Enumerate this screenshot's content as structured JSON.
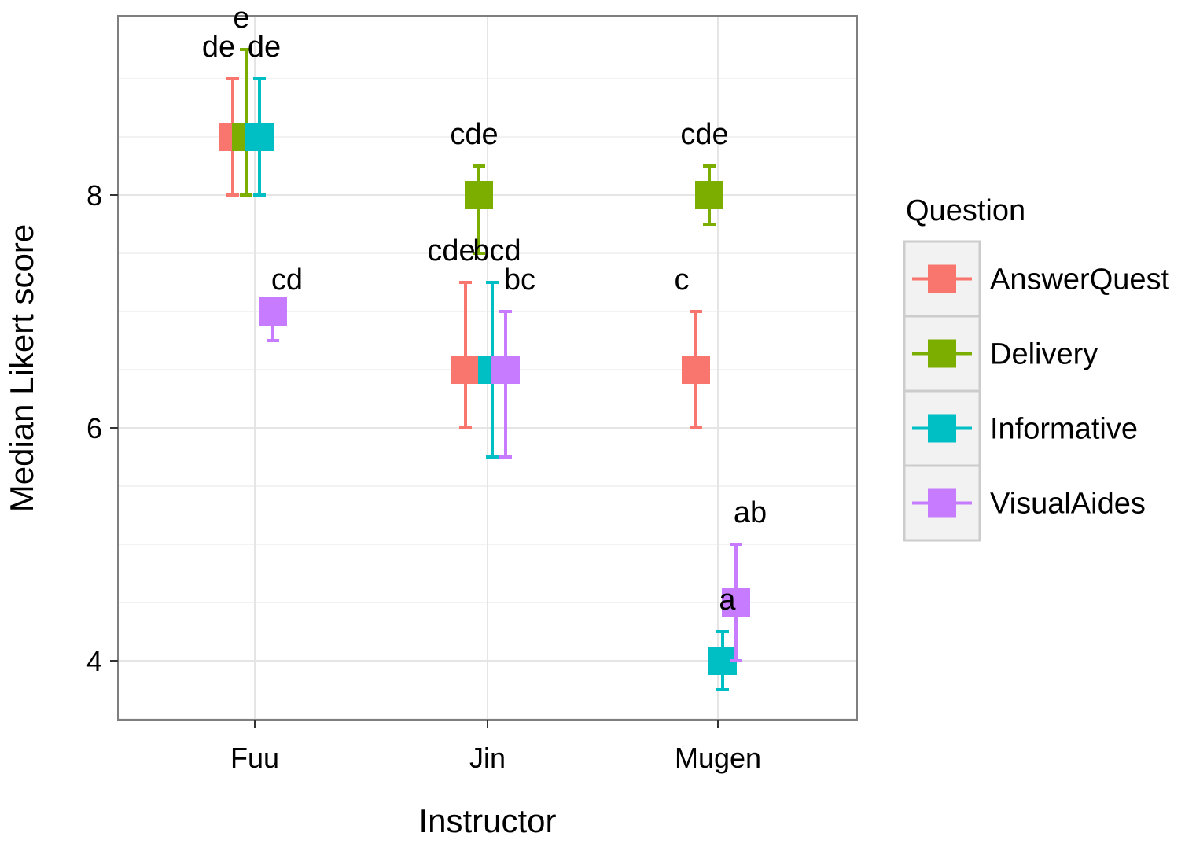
{
  "chart_data": {
    "type": "errorbar",
    "title": "",
    "xlabel": "Instructor",
    "ylabel": "Median Likert score",
    "categories": [
      "Fuu",
      "Jin",
      "Mugen"
    ],
    "yticks": [
      4,
      6,
      8
    ],
    "ylim": [
      3.5,
      9.5
    ],
    "grid": true,
    "legend": {
      "title": "Question",
      "position": "right"
    },
    "series": [
      {
        "name": "AnswerQuest",
        "color": "#F8766D",
        "points": [
          {
            "x": "Fuu",
            "median": 8.5,
            "lower": 8.0,
            "upper": 9.0,
            "label": "de"
          },
          {
            "x": "Jin",
            "median": 6.5,
            "lower": 6.0,
            "upper": 7.25,
            "label": "cde"
          },
          {
            "x": "Mugen",
            "median": 6.5,
            "lower": 6.0,
            "upper": 7.0,
            "label": "c"
          }
        ]
      },
      {
        "name": "Delivery",
        "color": "#7CAE00",
        "points": [
          {
            "x": "Fuu",
            "median": 8.5,
            "lower": 8.0,
            "upper": 9.25,
            "label": "e"
          },
          {
            "x": "Jin",
            "median": 8.0,
            "lower": 7.5,
            "upper": 8.25,
            "label": "cde"
          },
          {
            "x": "Mugen",
            "median": 8.0,
            "lower": 7.75,
            "upper": 8.25,
            "label": "cde"
          }
        ]
      },
      {
        "name": "Informative",
        "color": "#00BFC4",
        "points": [
          {
            "x": "Fuu",
            "median": 8.5,
            "lower": 8.0,
            "upper": 9.0,
            "label": "de"
          },
          {
            "x": "Jin",
            "median": 6.5,
            "lower": 5.75,
            "upper": 7.25,
            "label": "bcd"
          },
          {
            "x": "Mugen",
            "median": 4.0,
            "lower": 3.75,
            "upper": 4.25,
            "label": "a"
          }
        ]
      },
      {
        "name": "VisualAides",
        "color": "#C77CFF",
        "points": [
          {
            "x": "Fuu",
            "median": 7.0,
            "lower": 6.75,
            "upper": 7.0,
            "label": "cd"
          },
          {
            "x": "Jin",
            "median": 6.5,
            "lower": 5.75,
            "upper": 7.0,
            "label": "bc"
          },
          {
            "x": "Mugen",
            "median": 4.5,
            "lower": 4.0,
            "upper": 5.0,
            "label": "ab"
          }
        ]
      }
    ]
  }
}
